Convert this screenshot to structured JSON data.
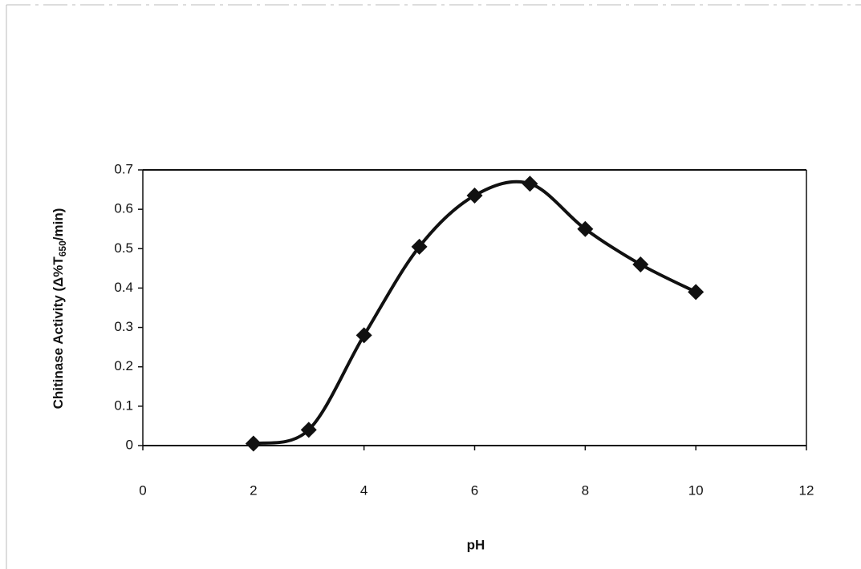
{
  "chart_data": {
    "type": "line",
    "x_label": "pH",
    "y_label": {
      "before": "Chitinase Activity (Δ%T",
      "subscript": "650",
      "after": "/min)"
    },
    "x": [
      2,
      3,
      4,
      5,
      6,
      7,
      8,
      9,
      10
    ],
    "series": [
      {
        "color": "#111111",
        "values": [
          0.005,
          0.04,
          0.28,
          0.505,
          0.635,
          0.665,
          0.55,
          0.46,
          0.39
        ]
      }
    ],
    "xlim": [
      0,
      12
    ],
    "xticks": [
      0,
      2,
      4,
      6,
      8,
      10,
      12
    ],
    "ylim": [
      0,
      0.7
    ],
    "yticks": [
      0,
      0.1,
      0.2,
      0.3,
      0.4,
      0.5,
      0.6,
      0.7
    ],
    "grid": false,
    "smooth": true,
    "marker": "diamond"
  }
}
